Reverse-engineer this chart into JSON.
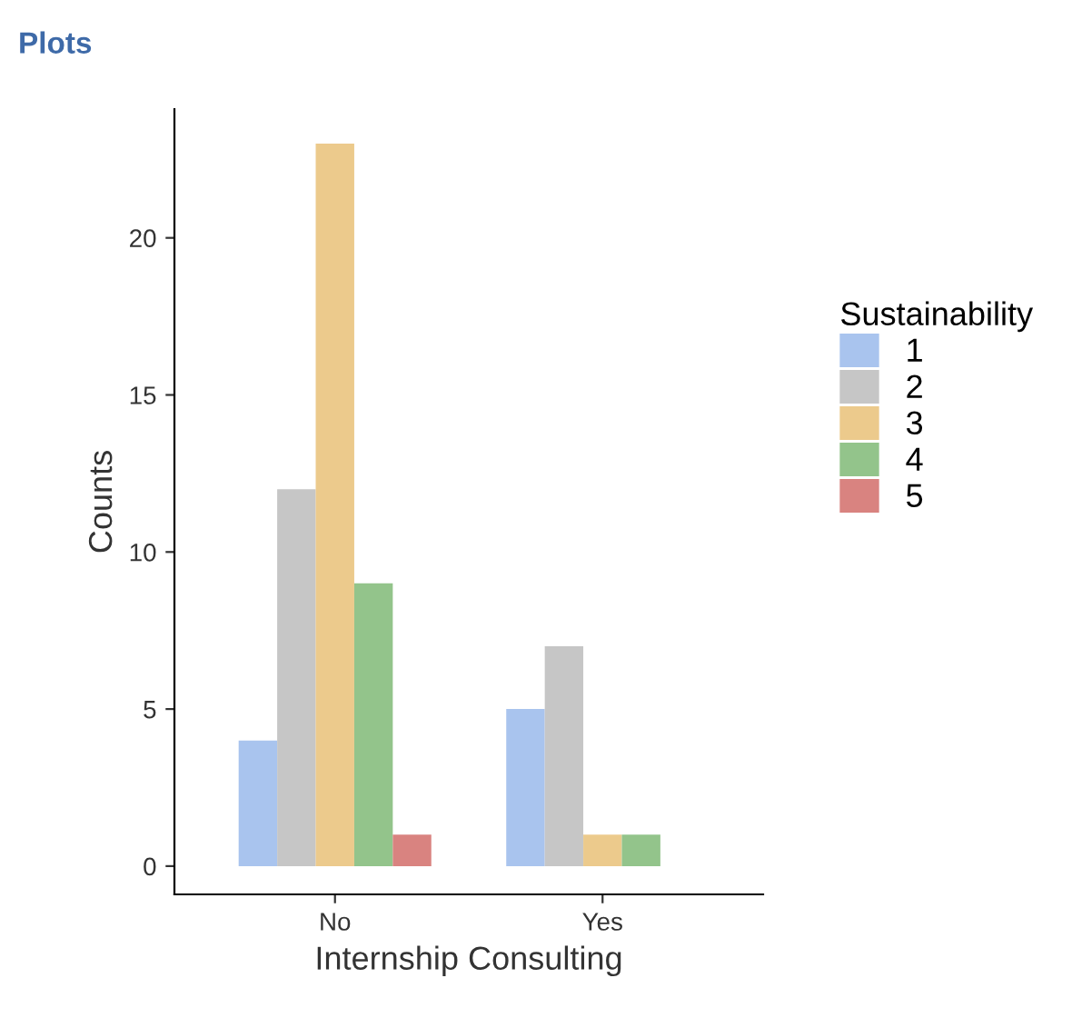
{
  "chart_data": {
    "type": "bar",
    "title": "Plots",
    "xlabel": "Internship Consulting",
    "ylabel": "Counts",
    "legend_title": "Sustainability",
    "categories": [
      "No",
      "Yes"
    ],
    "series": [
      {
        "name": "1",
        "color": "#a9c4ee",
        "values": [
          4,
          5
        ]
      },
      {
        "name": "2",
        "color": "#c6c6c6",
        "values": [
          12,
          7
        ]
      },
      {
        "name": "3",
        "color": "#ecca8c",
        "values": [
          23,
          1
        ]
      },
      {
        "name": "4",
        "color": "#93c48b",
        "values": [
          9,
          1
        ]
      },
      {
        "name": "5",
        "color": "#d98380",
        "values": [
          1,
          null
        ]
      }
    ],
    "ylim": [
      -0.9,
      24.1
    ],
    "yticks": [
      0,
      5,
      10,
      15,
      20
    ],
    "grid": false,
    "legend": "right"
  }
}
